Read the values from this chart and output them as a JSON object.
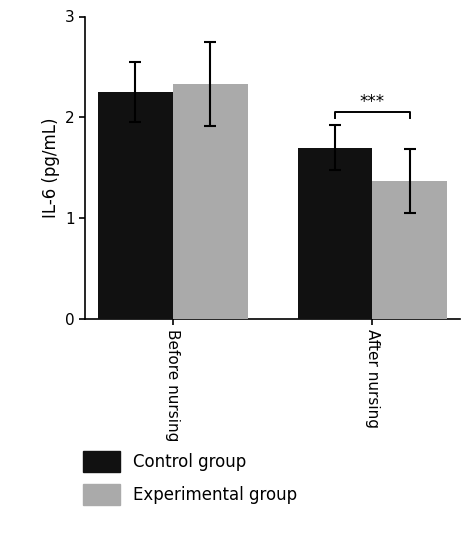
{
  "groups": [
    "Before nursing",
    "After nursing"
  ],
  "control_values": [
    2.25,
    1.7
  ],
  "experimental_values": [
    2.33,
    1.37
  ],
  "control_errors": [
    0.3,
    0.22
  ],
  "experimental_errors": [
    0.42,
    0.32
  ],
  "bar_width": 0.3,
  "group_centers": [
    0.35,
    1.15
  ],
  "control_color": "#111111",
  "experimental_color": "#aaaaaa",
  "ylabel": "IL-6 (pg/mL)",
  "ylim": [
    0,
    3.0
  ],
  "yticks": [
    0,
    1,
    2,
    3
  ],
  "significance_label": "***",
  "legend_labels": [
    "Control group",
    "Experimental group"
  ],
  "background_color": "#ffffff",
  "tick_label_fontsize": 11,
  "ylabel_fontsize": 12,
  "legend_fontsize": 12,
  "sig_fontsize": 12
}
